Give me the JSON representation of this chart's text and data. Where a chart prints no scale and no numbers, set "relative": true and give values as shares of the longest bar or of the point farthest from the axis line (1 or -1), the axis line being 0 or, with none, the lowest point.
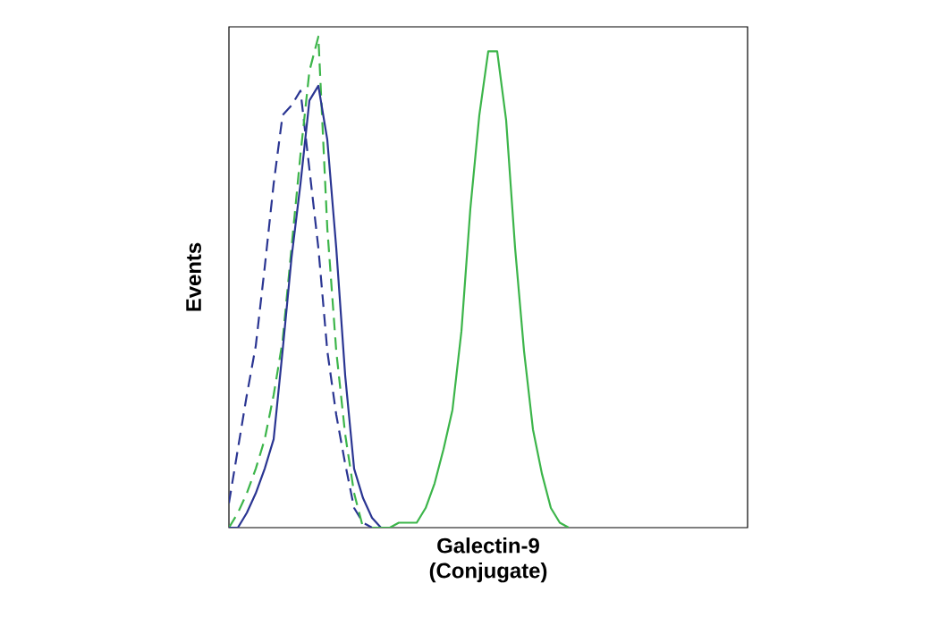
{
  "chart_data": {
    "type": "line",
    "relative": true,
    "xlabel": "Galectin-9 (Conjugate)",
    "ylabel": "Events",
    "marker": "none",
    "categories": [
      null,
      null,
      null,
      null,
      null,
      null,
      null,
      null,
      null,
      null,
      null,
      null,
      null,
      null,
      null,
      null,
      null,
      null,
      null,
      null,
      null,
      null,
      null,
      null,
      null,
      null,
      null,
      null,
      null,
      null,
      null,
      null,
      null,
      null,
      null,
      null,
      null,
      null,
      null,
      null,
      null,
      null,
      null,
      null,
      null,
      null,
      null,
      null,
      null,
      null,
      null,
      null,
      null,
      null,
      null,
      null,
      null,
      null,
      null
    ],
    "series": [
      {
        "color": "#2a3592",
        "line_style": "dashed",
        "values": [
          0.05,
          0.16,
          0.27,
          0.37,
          0.53,
          0.7,
          0.84,
          0.86,
          0.89,
          0.73,
          0.57,
          0.36,
          0.23,
          0.13,
          0.04,
          0.01,
          0,
          null,
          null,
          null,
          null,
          null,
          null,
          null,
          null,
          null,
          null,
          null,
          null,
          null,
          null,
          null,
          null,
          null,
          null,
          null,
          null,
          null,
          null,
          null,
          null,
          null,
          null,
          null,
          null,
          null,
          null,
          null,
          null,
          null,
          null,
          null,
          null,
          null,
          null,
          null,
          null,
          null,
          null
        ]
      },
      {
        "color": "#3cb54a",
        "line_style": "dashed",
        "values": [
          0,
          0.03,
          0.07,
          0.12,
          0.18,
          0.27,
          0.38,
          0.57,
          0.76,
          0.93,
          1,
          0.61,
          0.36,
          0.19,
          0.07,
          0,
          null,
          null,
          null,
          null,
          null,
          null,
          null,
          null,
          null,
          null,
          null,
          null,
          null,
          null,
          null,
          null,
          null,
          null,
          null,
          null,
          null,
          null,
          null,
          null,
          null,
          null,
          null,
          null,
          null,
          null,
          null,
          null,
          null,
          null,
          null,
          null,
          null,
          null,
          null,
          null,
          null,
          null,
          null
        ]
      },
      {
        "color": "#2a3592",
        "line_style": "solid",
        "values": [
          0,
          0,
          0.03,
          0.07,
          0.12,
          0.18,
          0.36,
          0.55,
          0.7,
          0.87,
          0.9,
          0.79,
          0.57,
          0.31,
          0.12,
          0.06,
          0.02,
          0,
          0,
          null,
          null,
          null,
          null,
          null,
          null,
          null,
          null,
          null,
          null,
          null,
          null,
          null,
          null,
          null,
          null,
          null,
          null,
          null,
          null,
          null,
          null,
          null,
          null,
          null,
          null,
          null,
          null,
          null,
          null,
          null,
          null,
          null,
          null,
          null,
          null,
          null,
          null,
          null,
          null
        ]
      },
      {
        "color": "#3cb54a",
        "line_style": "solid",
        "values": [
          null,
          null,
          null,
          null,
          null,
          null,
          null,
          null,
          null,
          null,
          null,
          null,
          null,
          null,
          null,
          null,
          0,
          0,
          0,
          0.01,
          0.01,
          0.01,
          0.04,
          0.09,
          0.16,
          0.24,
          0.4,
          0.65,
          0.84,
          0.97,
          0.97,
          0.83,
          0.57,
          0.36,
          0.2,
          0.11,
          0.04,
          0.01,
          0,
          null,
          null,
          null,
          null,
          null,
          null,
          null,
          null,
          null,
          null,
          null,
          null,
          null,
          null,
          null,
          null,
          null,
          null,
          null,
          null
        ]
      }
    ]
  }
}
